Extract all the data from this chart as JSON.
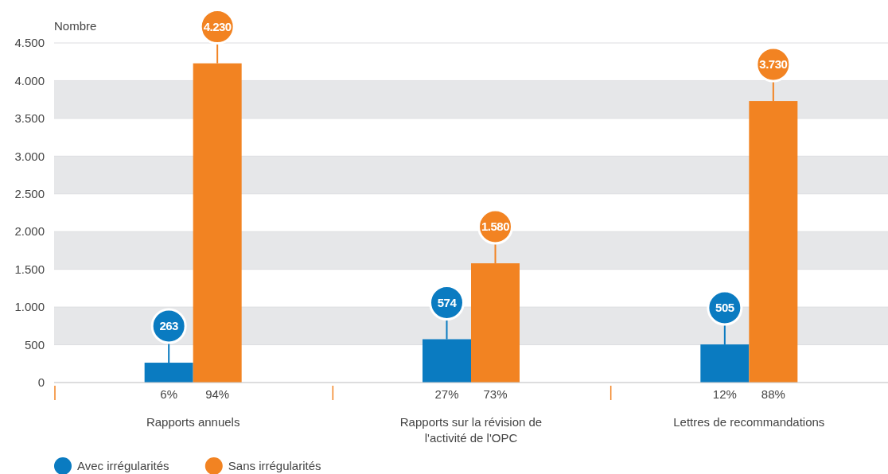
{
  "chart_data": {
    "type": "bar",
    "ylabel": "Nombre",
    "categories": [
      "Rapports annuels",
      "Rapports sur la révision de l'activité de l'OPC",
      "Lettres de recommandations"
    ],
    "series": [
      {
        "name": "Avec irrégularités",
        "color": "#0a7bc1",
        "values": [
          263,
          574,
          505
        ],
        "value_labels": [
          "263",
          "574",
          "505"
        ]
      },
      {
        "name": "Sans irrégularités",
        "color": "#f28322",
        "values": [
          4230,
          1580,
          3730
        ],
        "value_labels": [
          "4.230",
          "1.580",
          "3.730"
        ]
      }
    ],
    "ylim": [
      0,
      4500
    ],
    "yticks": [
      0,
      {
        "value": 500,
        "label": "500"
      },
      {
        "value": 1000,
        "label": "1.000"
      },
      {
        "value": 1500,
        "label": "1.500"
      },
      {
        "value": 2000,
        "label": "2.000"
      },
      {
        "value": 2500,
        "label": "2.500"
      },
      {
        "value": 3000,
        "label": "3.000"
      },
      {
        "value": 3500,
        "label": "3.500"
      },
      {
        "value": 4000,
        "label": "4.000"
      },
      {
        "value": 4500,
        "label": "4.500"
      }
    ],
    "grid": "y",
    "legend": "bottom left",
    "annotations": [
      "6%",
      "94%",
      "27%",
      "73%",
      "12%",
      "88%"
    ]
  }
}
